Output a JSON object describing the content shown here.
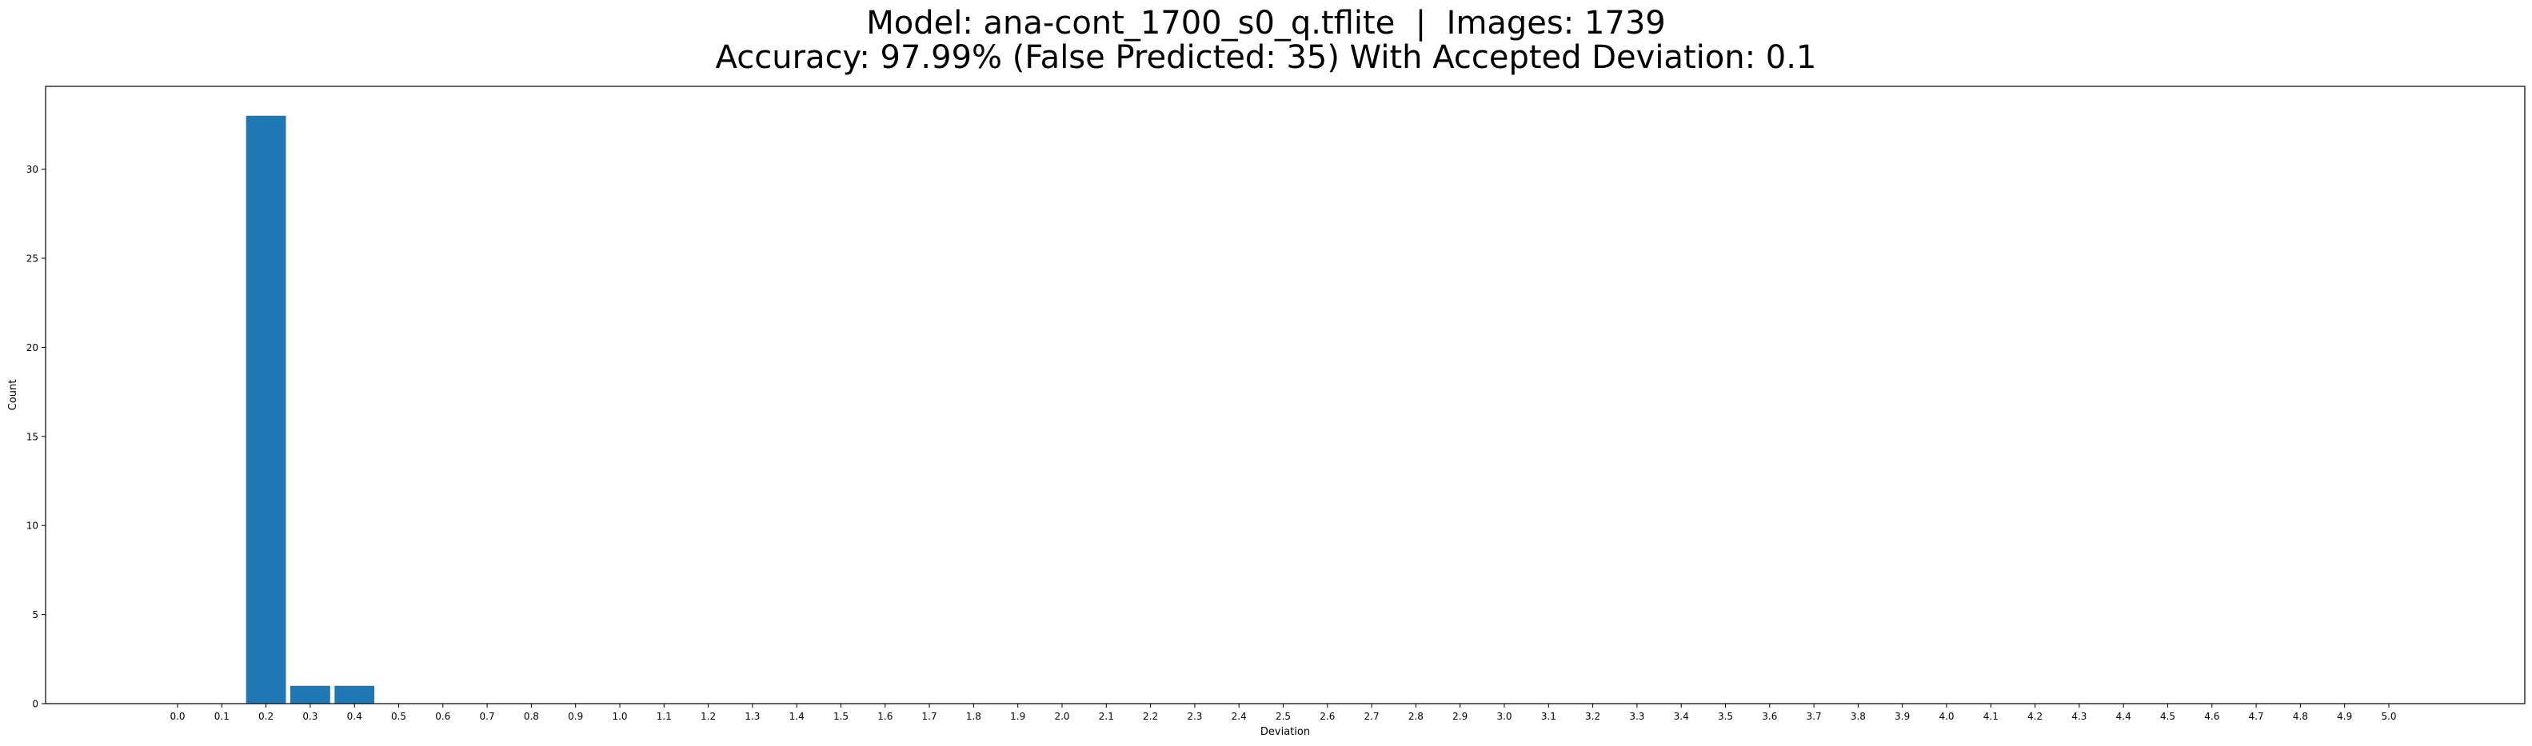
{
  "chart_data": {
    "type": "bar",
    "title_lines": [
      "Model: ana-cont_1700_s0_q.tflite  |  Images: 1739",
      "Accuracy: 97.99% (False Predicted: 35) With Accepted Deviation: 0.1"
    ],
    "xlabel": "Deviation",
    "ylabel": "Count",
    "categories": [
      "0.0",
      "0.1",
      "0.2",
      "0.3",
      "0.4",
      "0.5",
      "0.6",
      "0.7",
      "0.8",
      "0.9",
      "1.0",
      "1.1",
      "1.2",
      "1.3",
      "1.4",
      "1.5",
      "1.6",
      "1.7",
      "1.8",
      "1.9",
      "2.0",
      "2.1",
      "2.2",
      "2.3",
      "2.4",
      "2.5",
      "2.6",
      "2.7",
      "2.8",
      "2.9",
      "3.0",
      "3.1",
      "3.2",
      "3.3",
      "3.4",
      "3.5",
      "3.6",
      "3.7",
      "3.8",
      "3.9",
      "4.0",
      "4.1",
      "4.2",
      "4.3",
      "4.4",
      "4.5",
      "4.6",
      "4.7",
      "4.8",
      "4.9",
      "5.0"
    ],
    "values": [
      0,
      0,
      33,
      1,
      1,
      0,
      0,
      0,
      0,
      0,
      0,
      0,
      0,
      0,
      0,
      0,
      0,
      0,
      0,
      0,
      0,
      0,
      0,
      0,
      0,
      0,
      0,
      0,
      0,
      0,
      0,
      0,
      0,
      0,
      0,
      0,
      0,
      0,
      0,
      0,
      0,
      0,
      0,
      0,
      0,
      0,
      0,
      0,
      0,
      0,
      0
    ],
    "yticks": [
      0,
      5,
      10,
      15,
      20,
      25,
      30
    ],
    "ylim": [
      0,
      34.65
    ],
    "grid": false,
    "bar_color": "#1f77b4"
  }
}
